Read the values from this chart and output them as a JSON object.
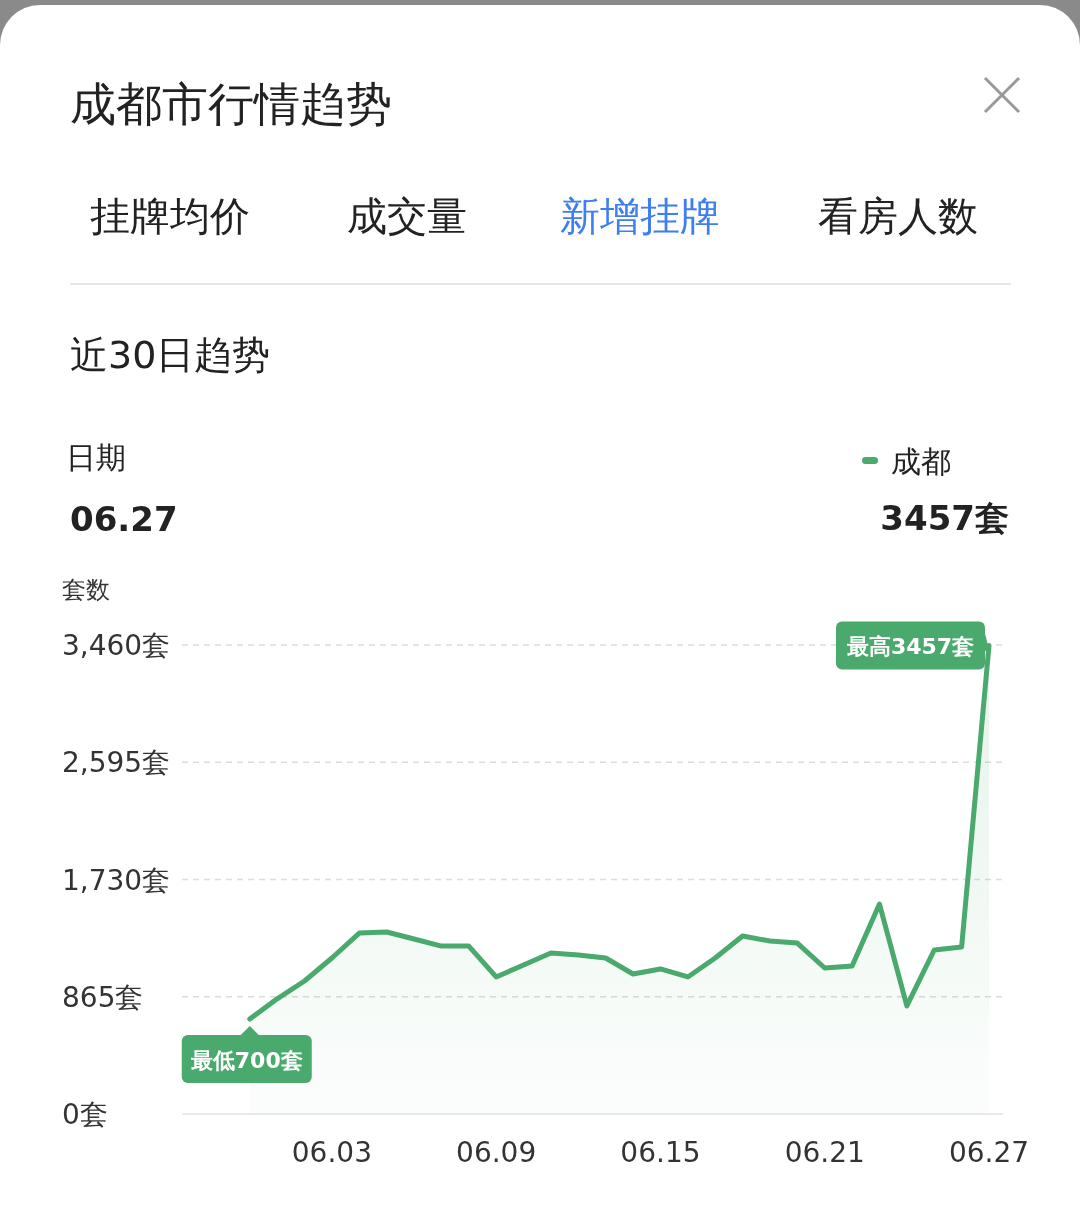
{
  "chart_data": {
    "type": "area",
    "title": "成都市行情趋势",
    "subtitle": "近30日趋势",
    "ylabel": "套数",
    "categories": [
      null,
      null,
      null,
      null,
      null,
      "06.03",
      null,
      null,
      null,
      null,
      null,
      "06.09",
      null,
      null,
      null,
      null,
      null,
      "06.15",
      null,
      null,
      null,
      null,
      null,
      "06.21",
      null,
      null,
      null,
      null,
      null,
      "06.27"
    ],
    "series": [
      {
        "name": "成都",
        "color": "#4aa96c",
        "values": [
          null,
          null,
          700,
          850,
          981,
          1151,
          1335,
          1343,
          1291,
          1239,
          1239,
          1011,
          1099,
          1188,
          1173,
          1151,
          1033,
          1070,
          1011,
          1151,
          1313,
          1276,
          1261,
          1077,
          1092,
          1549,
          797,
          1210,
          1232,
          3457
        ]
      }
    ],
    "ylim": [
      0,
      3460
    ],
    "yticks": [
      {
        "value": 0,
        "label": "0套"
      },
      {
        "value": 865,
        "label": "865套"
      },
      {
        "value": 1730,
        "label": "1,730套"
      },
      {
        "value": 2595,
        "label": "2,595套"
      },
      {
        "value": 3460,
        "label": "3,460套"
      }
    ],
    "grid": "y",
    "legend": "top right",
    "line_style": "solid",
    "marker": "none",
    "annotations": [
      "挂牌均价",
      "成交量",
      "新增挂牌",
      "看房人数",
      "日期",
      "06.27",
      "3457套",
      {
        "text": "最高3457套",
        "x": "06.27",
        "y": 3457
      },
      {
        "text": "最低700套",
        "y": 700
      }
    ]
  }
}
